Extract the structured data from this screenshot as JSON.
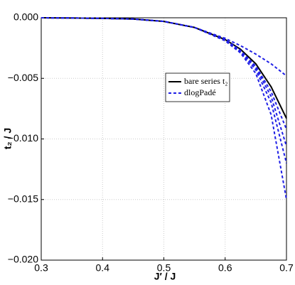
{
  "chart_data": {
    "type": "line",
    "x_label": "J′ / J",
    "y_label": "t₂ / J",
    "x": [
      0.3,
      0.35,
      0.4,
      0.45,
      0.5,
      0.55,
      0.6,
      0.625,
      0.65,
      0.675,
      0.7
    ],
    "series": [
      {
        "name": "bare series t₂",
        "color": "#000000",
        "dash": false,
        "values": [
          0,
          -2e-05,
          -5e-05,
          -0.0001,
          -0.0003,
          -0.0008,
          -0.0018,
          -0.0026,
          -0.0038,
          -0.0057,
          -0.0083
        ]
      },
      {
        "name": "dlogPadé",
        "color": "#1f1fe6",
        "dash": true,
        "values": [
          0,
          -2e-05,
          -5e-05,
          -0.0001,
          -0.0003,
          -0.0008,
          -0.0017,
          -0.0023,
          -0.003,
          -0.0038,
          -0.0048
        ]
      },
      {
        "color": "#1f1fe6",
        "dash": true,
        "values": [
          0,
          -2e-05,
          -5e-05,
          -0.0001,
          -0.0003,
          -0.0008,
          -0.0018,
          -0.0027,
          -0.004,
          -0.0061,
          -0.0092
        ]
      },
      {
        "color": "#1f1fe6",
        "dash": true,
        "values": [
          0,
          -2e-05,
          -5e-05,
          -0.0001,
          -0.0003,
          -0.0008,
          -0.0018,
          -0.0027,
          -0.0041,
          -0.0065,
          -0.0106
        ]
      },
      {
        "color": "#1f1fe6",
        "dash": true,
        "values": [
          0,
          -2e-05,
          -5e-05,
          -0.0001,
          -0.0003,
          -0.0008,
          -0.0018,
          -0.0028,
          -0.0043,
          -0.007,
          -0.012
        ]
      },
      {
        "color": "#1f1fe6",
        "dash": true,
        "values": [
          0,
          -2e-05,
          -5e-05,
          -0.0001,
          -0.0003,
          -0.0008,
          -0.0019,
          -0.0029,
          -0.0046,
          -0.008,
          -0.015
        ]
      }
    ],
    "xlim": [
      0.3,
      0.7
    ],
    "xticks": [
      0.3,
      0.4,
      0.5,
      0.6,
      0.7
    ],
    "ylim": [
      -0.02,
      0
    ],
    "yticks": [
      {
        "value": 0,
        "label": "0.000"
      },
      {
        "value": -0.005,
        "label": "−0.005"
      },
      {
        "value": -0.01,
        "label": "−0.010"
      },
      {
        "value": -0.015,
        "label": "−0.015"
      },
      {
        "value": -0.02,
        "label": "−0.020"
      }
    ],
    "grid": true,
    "legend": "center-right"
  }
}
